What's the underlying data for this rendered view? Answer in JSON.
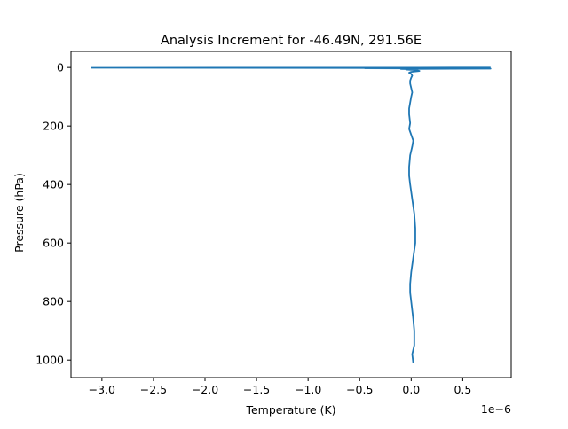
{
  "chart_data": {
    "type": "line",
    "title": "Analysis Increment for -46.49N, 291.56E",
    "xlabel": "Temperature (K)",
    "ylabel": "Pressure (hPa)",
    "x_scale_note": "1e−6",
    "xlim": [
      -3.3,
      0.97
    ],
    "ylim": [
      1060,
      -55
    ],
    "y_inverted": true,
    "grid": false,
    "line_color": "#1f77b4",
    "xticks": [
      {
        "value": -3.0,
        "label": "−3.0"
      },
      {
        "value": -2.5,
        "label": "−2.5"
      },
      {
        "value": -2.0,
        "label": "−2.0"
      },
      {
        "value": -1.5,
        "label": "−1.5"
      },
      {
        "value": -1.0,
        "label": "−1.0"
      },
      {
        "value": -0.5,
        "label": "−0.5"
      },
      {
        "value": 0.0,
        "label": "0.0"
      },
      {
        "value": 0.5,
        "label": "0.5"
      }
    ],
    "yticks": [
      {
        "value": 0,
        "label": "0"
      },
      {
        "value": 200,
        "label": "200"
      },
      {
        "value": 400,
        "label": "400"
      },
      {
        "value": 600,
        "label": "600"
      },
      {
        "value": 800,
        "label": "800"
      },
      {
        "value": 1000,
        "label": "1000"
      }
    ],
    "series": [
      {
        "x": [
          0.02,
          0.01,
          0.03,
          0.03,
          0.02,
          0.01,
          0.0,
          -0.01,
          -0.01,
          0.0,
          0.02,
          0.04,
          0.04,
          0.03,
          0.01,
          -0.01,
          -0.02,
          -0.02,
          -0.01,
          0.01,
          0.02,
          0.0,
          -0.02,
          -0.01,
          -0.02,
          -0.02,
          -0.01,
          0.0,
          0.01,
          0.0,
          -0.01,
          -0.01,
          0.0,
          0.01,
          0.0,
          -0.02,
          0.0,
          0.05,
          0.08,
          0.06,
          0.03,
          0.0,
          -0.05,
          0.02,
          -0.1,
          0.77,
          -0.45,
          0.0,
          -3.1,
          -1.6,
          0.05,
          0.77
        ],
        "y": [
          1010,
          980,
          950,
          900,
          860,
          830,
          800,
          770,
          740,
          700,
          650,
          600,
          550,
          500,
          450,
          400,
          370,
          340,
          300,
          270,
          250,
          230,
          210,
          190,
          160,
          140,
          120,
          100,
          85,
          70,
          55,
          45,
          35,
          28,
          22,
          18,
          15,
          13,
          12,
          10,
          9,
          8,
          7,
          6,
          5,
          4,
          3,
          2,
          1,
          0.8,
          0.6,
          0.4
        ]
      }
    ]
  }
}
